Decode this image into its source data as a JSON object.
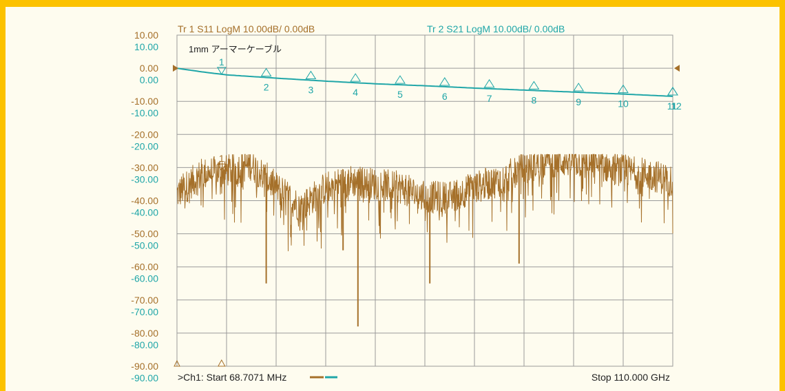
{
  "colors": {
    "trace1": "#a5702a",
    "trace2": "#1fa6a8",
    "grid": "#9a9a9a",
    "background": "#fefcef",
    "border": "#fcc200"
  },
  "header": {
    "tr1_label": "Tr  1   S11 LogM 10.00dB/  0.00dB",
    "tr2_label": "Tr  2   S21 LogM 10.00dB/  0.00dB"
  },
  "annotation": "1mm アーマーケーブル",
  "footer": {
    "start_label": ">Ch1:  Start   68.7071 MHz",
    "stop_label": "Stop  110.000 GHz"
  },
  "chart_data": {
    "type": "line",
    "x_start_mhz": 68.7071,
    "x_stop_ghz": 110.0,
    "divisions_x": 10,
    "ylim": [
      -90,
      10
    ],
    "ytick_values": [
      10,
      0,
      -10,
      -20,
      -30,
      -40,
      -50,
      -60,
      -70,
      -80,
      -90
    ],
    "ytick_labels_tr1": [
      "10.00",
      "0.00",
      "-10.00",
      "-20.00",
      "-30.00",
      "-40.00",
      "-50.00",
      "-60.00",
      "-70.00",
      "-80.00",
      "-90.00"
    ],
    "ytick_labels_tr2": [
      "10.00",
      "0.00",
      "-10.00",
      "-20.00",
      "-30.00",
      "-40.00",
      "-50.00",
      "-60.00",
      "-70.00",
      "-80.00",
      "-90.00"
    ],
    "grid": true,
    "series": [
      {
        "name": "S11",
        "scale": "LogM 10.00dB/ 0.00dB",
        "x_div": [
          0,
          0.5,
          1,
          1.5,
          2,
          2.5,
          3,
          3.5,
          4,
          4.5,
          5,
          5.5,
          6,
          6.5,
          7,
          7.5,
          8,
          8.5,
          9,
          9.5,
          10
        ],
        "y": [
          -38,
          -32,
          -31,
          -29,
          -36,
          -42,
          -36,
          -34,
          -35,
          -36,
          -39,
          -39,
          -36,
          -34,
          -30,
          -28,
          -28,
          -29,
          -31,
          -32,
          -34
        ],
        "spikes": [
          {
            "x_div": 1.8,
            "y": -65
          },
          {
            "x_div": 3.65,
            "y": -78
          },
          {
            "x_div": 5.1,
            "y": -65
          },
          {
            "x_div": 3.35,
            "y": -55
          },
          {
            "x_div": 6.9,
            "y": -59
          }
        ]
      },
      {
        "name": "S21",
        "scale": "LogM 10.00dB/ 0.00dB",
        "x_div": [
          0,
          0.5,
          1,
          2,
          3,
          4,
          5,
          6,
          7,
          8,
          9,
          10
        ],
        "y": [
          0,
          -1.1,
          -2,
          -3,
          -3.9,
          -4.7,
          -5.3,
          -6,
          -6.6,
          -7.2,
          -7.8,
          -8.5
        ]
      }
    ],
    "markers_tr2": [
      {
        "label": "1",
        "x_div": 0.9
      },
      {
        "label": "2",
        "x_div": 1.8
      },
      {
        "label": "3",
        "x_div": 2.7
      },
      {
        "label": "4",
        "x_div": 3.6
      },
      {
        "label": "5",
        "x_div": 4.5
      },
      {
        "label": "6",
        "x_div": 5.4
      },
      {
        "label": "7",
        "x_div": 6.3
      },
      {
        "label": "8",
        "x_div": 7.2
      },
      {
        "label": "9",
        "x_div": 8.1
      },
      {
        "label": "10",
        "x_div": 9.0
      },
      {
        "label": "11",
        "x_div": 10.0
      },
      {
        "label": "12",
        "x_div": 10.0
      }
    ],
    "markers_tr1": [
      {
        "label": "1",
        "x_div": 0.9
      }
    ]
  }
}
